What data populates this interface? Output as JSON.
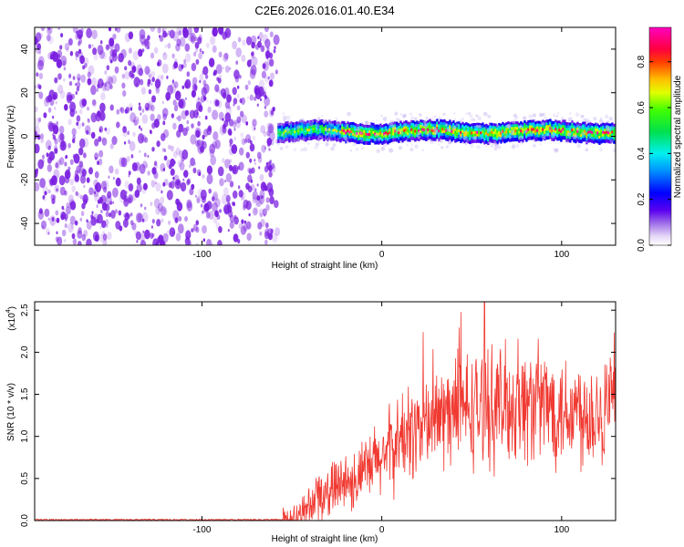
{
  "title": "C2E6.2026.016.01.40.E34",
  "colors": {
    "snr_line": "#f03a32",
    "noise_dot": "#7a1fe0",
    "frame": "#000000"
  },
  "chart_data": [
    {
      "type": "heatmap",
      "xlabel": "Height of straight line (km)",
      "ylabel": "Frequency (Hz)",
      "xlim": [
        -193,
        130
      ],
      "ylim": [
        -50,
        50
      ],
      "x_ticks": [
        -100,
        0,
        100
      ],
      "y_ticks": [
        -40,
        -20,
        0,
        20,
        40
      ],
      "grid": false,
      "colorbar": {
        "label": "Normalized spectral amplitude",
        "range": [
          0,
          0.95
        ],
        "ticks": [
          0.0,
          0.2,
          0.4,
          0.6,
          0.8
        ],
        "colormap": "rainbow"
      },
      "regions": {
        "noise": {
          "x": [
            -193,
            -58
          ],
          "y": [
            -50,
            50
          ]
        },
        "signal": {
          "x": [
            -58,
            130
          ],
          "center_frequency": 2,
          "bandwidth": 5
        }
      }
    },
    {
      "type": "line",
      "xlabel": "Height of straight line (km)",
      "ylabel": "SNR (10 * v/v)",
      "y_multiplier": "(x10",
      "y_multiplier_exp": "4",
      "xlim": [
        -193,
        130
      ],
      "ylim": [
        0,
        2.6
      ],
      "x_ticks": [
        -100,
        0,
        100
      ],
      "y_ticks": [
        0.0,
        0.5,
        1.0,
        1.5,
        2.0,
        2.5
      ],
      "grid": false,
      "trend": [
        {
          "x": -193,
          "y": 0.01
        },
        {
          "x": -55,
          "y": 0.01
        },
        {
          "x": -45,
          "y": 0.05
        },
        {
          "x": -35,
          "y": 0.3
        },
        {
          "x": -20,
          "y": 0.45
        },
        {
          "x": -10,
          "y": 0.55
        },
        {
          "x": 0,
          "y": 0.75
        },
        {
          "x": 10,
          "y": 0.95
        },
        {
          "x": 20,
          "y": 1.1
        },
        {
          "x": 40,
          "y": 1.3
        },
        {
          "x": 60,
          "y": 1.35
        },
        {
          "x": 80,
          "y": 1.4
        },
        {
          "x": 100,
          "y": 1.35
        },
        {
          "x": 115,
          "y": 1.3
        },
        {
          "x": 130,
          "y": 1.35
        }
      ]
    }
  ]
}
